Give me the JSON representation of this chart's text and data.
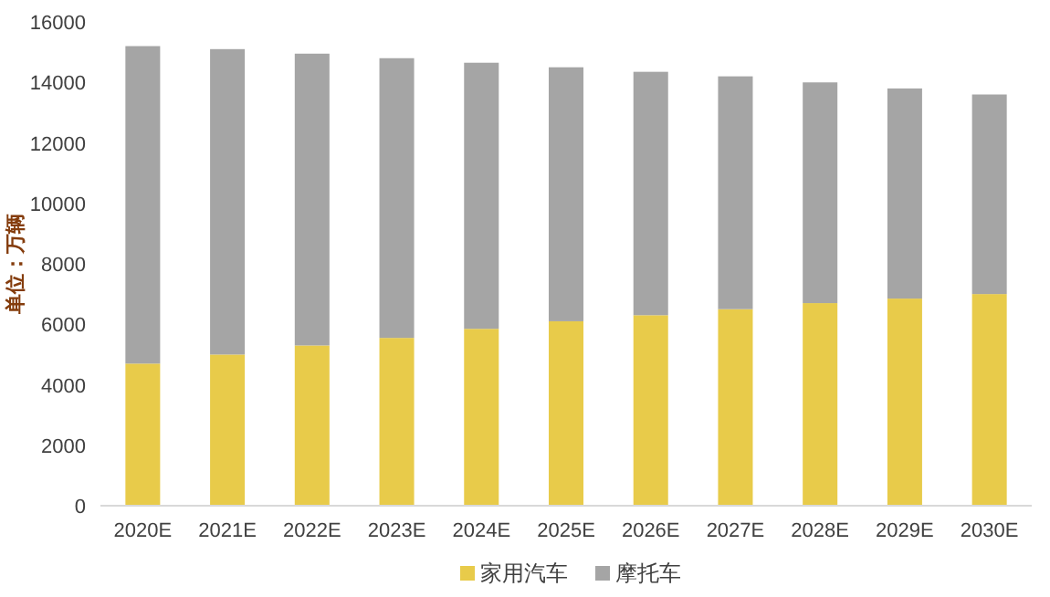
{
  "chart_data": {
    "type": "bar",
    "stacked": true,
    "ylabel": "单位：万辆",
    "categories": [
      "2020E",
      "2021E",
      "2022E",
      "2023E",
      "2024E",
      "2025E",
      "2026E",
      "2027E",
      "2028E",
      "2029E",
      "2030E"
    ],
    "series": [
      {
        "name": "家用汽车",
        "color": "#e8cb4a",
        "values": [
          4700,
          5000,
          5300,
          5550,
          5850,
          6100,
          6300,
          6500,
          6700,
          6850,
          7000
        ]
      },
      {
        "name": "摩托车",
        "color": "#a5a5a5",
        "values": [
          10500,
          10100,
          9650,
          9250,
          8800,
          8400,
          8050,
          7700,
          7300,
          6950,
          6600
        ]
      }
    ],
    "ylim": [
      0,
      16000
    ],
    "yticks": [
      0,
      2000,
      4000,
      6000,
      8000,
      10000,
      12000,
      14000,
      16000
    ],
    "legend": "bottom",
    "grid": false
  }
}
